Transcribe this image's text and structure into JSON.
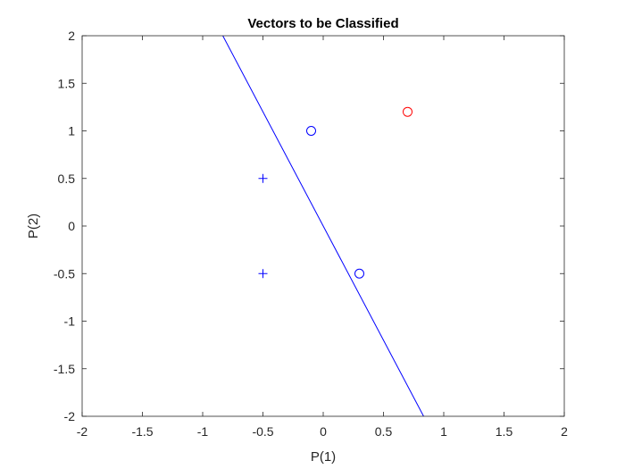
{
  "chart_data": {
    "type": "scatter",
    "title": "Vectors to be Classified",
    "xlabel": "P(1)",
    "ylabel": "P(2)",
    "xlim": [
      -2,
      2
    ],
    "ylim": [
      -2,
      2
    ],
    "xticks": [
      -2,
      -1.5,
      -1,
      -0.5,
      0,
      0.5,
      1,
      1.5,
      2
    ],
    "yticks": [
      -2,
      -1.5,
      -1,
      -0.5,
      0,
      0.5,
      1,
      1.5,
      2
    ],
    "xtick_labels": [
      "-2",
      "-1.5",
      "-1",
      "-0.5",
      "0",
      "0.5",
      "1",
      "1.5",
      "2"
    ],
    "ytick_labels": [
      "-2",
      "-1.5",
      "-1",
      "-0.5",
      "0",
      "0.5",
      "1",
      "1.5",
      "2"
    ],
    "grid": false,
    "box": true,
    "series": [
      {
        "marker": "plus",
        "color": "#0000ff",
        "points": [
          [
            -0.5,
            0.5
          ],
          [
            -0.5,
            -0.5
          ]
        ]
      },
      {
        "marker": "circle",
        "color": "#0000ff",
        "points": [
          [
            -0.1,
            1.0
          ],
          [
            0.3,
            -0.5
          ]
        ]
      },
      {
        "marker": "circle",
        "color": "#ff0000",
        "points": [
          [
            0.7,
            1.2
          ]
        ]
      }
    ],
    "boundary_line": {
      "color": "#0000ff",
      "points": [
        [
          -0.833,
          2.0
        ],
        [
          0.833,
          -2.0
        ]
      ]
    }
  }
}
